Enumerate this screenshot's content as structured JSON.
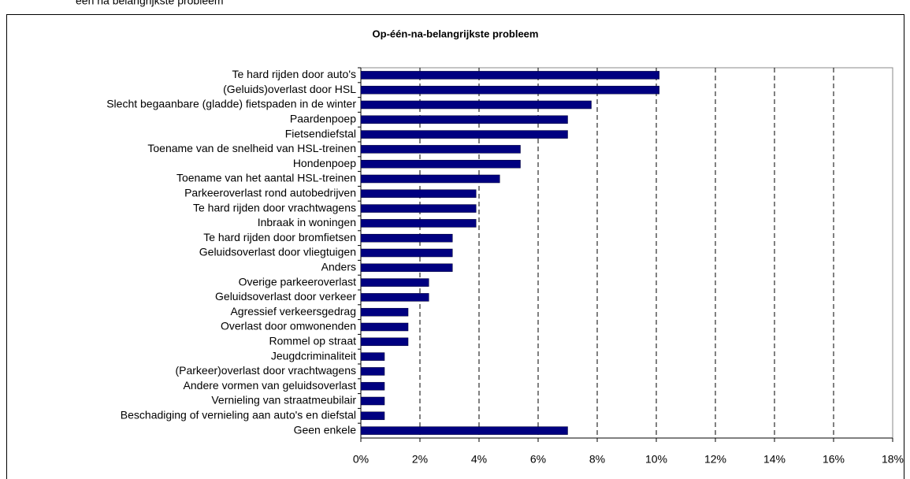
{
  "chart_data": {
    "type": "hbar",
    "heading": "een na belangrijkste probleem",
    "title": "Op-één-na-belangrijkste probleem",
    "categories": [
      "Te hard rijden door auto's",
      "(Geluids)overlast door HSL",
      "Slecht begaanbare (gladde) fietspaden in de winter",
      "Paardenpoep",
      "Fietsendiefstal",
      "Toename van de snelheid van HSL-treinen",
      "Hondenpoep",
      "Toename van het aantal HSL-treinen",
      "Parkeeroverlast rond autobedrijven",
      "Te hard rijden door vrachtwagens",
      "Inbraak in woningen",
      "Te hard rijden door bromfietsen",
      "Geluidsoverlast door vliegtuigen",
      "Anders",
      "Overige parkeeroverlast",
      "Geluidsoverlast door verkeer",
      "Agressief verkeersgedrag",
      "Overlast door omwonenden",
      "Rommel op straat",
      "Jeugdcriminaliteit",
      "(Parkeer)overlast door vrachtwagens",
      "Andere vormen van geluidsoverlast",
      "Vernieling van straatmeubilair",
      "Beschadiging of vernieling aan auto's en diefstal",
      "Geen enkele"
    ],
    "values": [
      10.1,
      10.1,
      7.8,
      7.0,
      7.0,
      5.4,
      5.4,
      4.7,
      3.9,
      3.9,
      3.9,
      3.1,
      3.1,
      3.1,
      2.3,
      2.3,
      1.6,
      1.6,
      1.6,
      0.8,
      0.8,
      0.8,
      0.8,
      0.8,
      7.0
    ],
    "color": "#000080",
    "xlim": [
      0,
      18
    ],
    "xticks": [
      {
        "value": 0,
        "label": "0%"
      },
      {
        "value": 2,
        "label": "2%"
      },
      {
        "value": 4,
        "label": "4%"
      },
      {
        "value": 6,
        "label": "6%"
      },
      {
        "value": 8,
        "label": "8%"
      },
      {
        "value": 10,
        "label": "10%"
      },
      {
        "value": 12,
        "label": "12%"
      },
      {
        "value": 14,
        "label": "14%"
      },
      {
        "value": 16,
        "label": "16%"
      },
      {
        "value": 18,
        "label": "18%"
      }
    ],
    "grid": true
  }
}
